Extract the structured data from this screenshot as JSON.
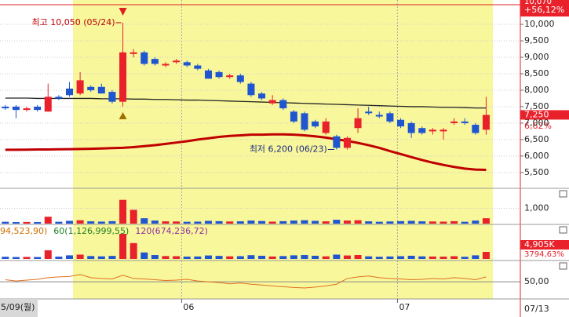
{
  "chart_data": {
    "type": "candlestick",
    "open": [
      7500,
      7500,
      7400,
      7500,
      7350,
      7800,
      8050,
      7900,
      8100,
      8100,
      7950,
      7650,
      9100,
      9150,
      8950,
      8750,
      8850,
      8850,
      8750,
      8600,
      8550,
      8400,
      8450,
      8200,
      7900,
      7600,
      7700,
      7350,
      7300,
      7050,
      6700,
      6600,
      6250,
      6850,
      7350,
      7250,
      7300,
      7100,
      7000,
      6850,
      6750,
      6750,
      7000,
      7050,
      6950,
      6800
    ],
    "high": [
      7550,
      7550,
      7500,
      7550,
      8200,
      7850,
      8250,
      8550,
      8150,
      8200,
      8000,
      10050,
      9250,
      9200,
      9000,
      8850,
      8950,
      8900,
      8800,
      8650,
      8600,
      8500,
      8500,
      8250,
      7950,
      7850,
      7750,
      7400,
      7350,
      7100,
      7150,
      6650,
      6600,
      7450,
      7500,
      7350,
      7350,
      7150,
      7050,
      6900,
      6850,
      6850,
      7150,
      7150,
      7000,
      7800
    ],
    "low": [
      7400,
      7150,
      7350,
      7350,
      7350,
      7700,
      7800,
      7850,
      7950,
      7900,
      7600,
      7500,
      9000,
      8750,
      8750,
      8700,
      8800,
      8700,
      8600,
      8350,
      8350,
      8350,
      8200,
      7800,
      7700,
      7550,
      7400,
      7000,
      6750,
      6850,
      6650,
      6200,
      6200,
      6700,
      7250,
      7150,
      7000,
      6850,
      6550,
      6650,
      6650,
      6500,
      6950,
      6950,
      6650,
      6650
    ],
    "close": [
      7450,
      7400,
      7450,
      7400,
      7800,
      7750,
      7850,
      8300,
      8000,
      7900,
      7650,
      9150,
      9150,
      8800,
      8800,
      8800,
      8900,
      8750,
      8650,
      8350,
      8400,
      8450,
      8250,
      7850,
      7750,
      7700,
      7450,
      7050,
      6800,
      6900,
      7050,
      6250,
      6550,
      7150,
      7300,
      7200,
      7050,
      6900,
      6700,
      6700,
      6800,
      6800,
      7050,
      7000,
      6700,
      7250
    ],
    "up_color": "#e8212b",
    "down_color": "#1f55d0",
    "xlim": [
      -0.5,
      48.2
    ],
    "xticks": [
      {
        "value": 16.5,
        "label": "06"
      },
      {
        "value": 36.7,
        "label": "07"
      }
    ],
    "ylim": [
      5020,
      10740
    ],
    "yticks": [
      {
        "value": 5500,
        "label": "5,500"
      },
      {
        "value": 6000,
        "label": "6,000"
      },
      {
        "value": 6500,
        "label": "6,500"
      },
      {
        "value": 7000,
        "label": "7,000"
      },
      {
        "value": 7500,
        "label": "7,500"
      },
      {
        "value": 8000,
        "label": "8,000"
      },
      {
        "value": 8500,
        "label": "8,500"
      },
      {
        "value": 9000,
        "label": "9,000"
      },
      {
        "value": 9500,
        "label": "9,500"
      },
      {
        "value": 10000,
        "label": "10,000"
      }
    ],
    "moving_averages": [
      {
        "color": "#222222",
        "values": [
          7760,
          7760,
          7760,
          7750,
          7750,
          7750,
          7750,
          7750,
          7750,
          7740,
          7740,
          7740,
          7730,
          7730,
          7720,
          7720,
          7710,
          7700,
          7700,
          7690,
          7680,
          7670,
          7660,
          7650,
          7640,
          7630,
          7620,
          7610,
          7600,
          7590,
          7580,
          7570,
          7560,
          7550,
          7540,
          7530,
          7520,
          7510,
          7500,
          7500,
          7490,
          7480,
          7480,
          7470,
          7460,
          7460
        ]
      },
      {
        "color": "#c00000",
        "values": [
          6190,
          6190,
          6195,
          6200,
          6200,
          6205,
          6210,
          6215,
          6220,
          6230,
          6240,
          6250,
          6270,
          6300,
          6330,
          6370,
          6410,
          6450,
          6500,
          6540,
          6580,
          6610,
          6630,
          6650,
          6650,
          6660,
          6660,
          6650,
          6630,
          6600,
          6560,
          6510,
          6460,
          6400,
          6330,
          6250,
          6150,
          6060,
          5970,
          5880,
          5800,
          5730,
          5670,
          5620,
          5590,
          5580
        ]
      }
    ],
    "high_annotation": "최고 10,050 (05/24)",
    "low_annotation": "최저 6,200 (06/23)",
    "last_price": {
      "value": 7250,
      "label": "7,250"
    },
    "last_change": "6,62%",
    "header_price": "10,070",
    "header_change": "+56,12%",
    "start_date": "5/09(월)",
    "end_date": "07/13",
    "volume": {
      "values": [
        120,
        100,
        110,
        100,
        450,
        120,
        180,
        220,
        150,
        130,
        160,
        1550,
        900,
        350,
        200,
        150,
        140,
        120,
        130,
        180,
        160,
        140,
        150,
        200,
        170,
        130,
        160,
        200,
        220,
        180,
        150,
        250,
        200,
        220,
        150,
        120,
        140,
        160,
        180,
        150,
        140,
        130,
        160,
        120,
        200,
        350
      ],
      "ylim": [
        0,
        2200
      ],
      "yticks": [
        {
          "value": 1000,
          "label": "1,000"
        }
      ]
    },
    "amount": {
      "legend": [
        {
          "text": "94,523,90)",
          "color": "#d07000"
        },
        {
          "text": "60(1,126,999,55)",
          "color": "#208020"
        },
        {
          "text": "120(674,236,72)",
          "color": "#9030a0"
        }
      ],
      "values": [
        1500,
        1300,
        1400,
        1300,
        6000,
        1600,
        2500,
        3000,
        2000,
        1800,
        2100,
        17400,
        11000,
        4500,
        2700,
        2000,
        1900,
        1600,
        1700,
        2400,
        2100,
        1800,
        1900,
        2600,
        2200,
        1700,
        2000,
        2500,
        2700,
        2200,
        1800,
        3000,
        2400,
        2700,
        1800,
        1500,
        1700,
        1900,
        2200,
        1800,
        1700,
        1600,
        1900,
        1500,
        2500,
        4905
      ],
      "ylim": [
        0,
        23400
      ],
      "last_label": "4,905K",
      "ratio": "3794,63%"
    },
    "oscillator": {
      "color": "#e07020",
      "values": [
        55,
        52,
        54,
        56,
        60,
        62,
        63,
        68,
        60,
        58,
        57,
        66,
        58,
        57,
        55,
        53,
        54,
        56,
        52,
        50,
        48,
        45,
        47,
        44,
        42,
        40,
        38,
        36,
        35,
        37,
        40,
        44,
        58,
        62,
        64,
        60,
        58,
        57,
        55,
        56,
        58,
        57,
        60,
        58,
        55,
        62
      ],
      "ylim": [
        10,
        100
      ],
      "yticks": [
        {
          "value": 50,
          "label": "50,00"
        }
      ]
    }
  }
}
